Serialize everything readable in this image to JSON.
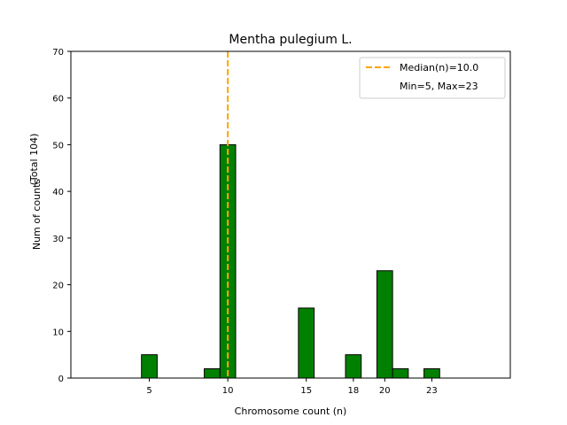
{
  "chart_data": {
    "type": "bar",
    "title": "Mentha pulegium L.",
    "xlabel": "Chromosome count (n)",
    "ylabel_line1": "Num of counts",
    "ylabel_line2": "(Total 104)",
    "xlim": [
      0,
      28
    ],
    "ylim": [
      0,
      70
    ],
    "x_ticks": [
      5,
      10,
      15,
      18,
      20,
      23
    ],
    "y_ticks": [
      0,
      10,
      20,
      30,
      40,
      50,
      60,
      70
    ],
    "bars": [
      {
        "x": 5,
        "value": 5
      },
      {
        "x": 9,
        "value": 2
      },
      {
        "x": 10,
        "value": 50
      },
      {
        "x": 15,
        "value": 15
      },
      {
        "x": 18,
        "value": 5
      },
      {
        "x": 20,
        "value": 23
      },
      {
        "x": 21,
        "value": 2
      },
      {
        "x": 23,
        "value": 2
      }
    ],
    "bar_color": "#008000",
    "median": 10.0,
    "median_color": "#FFA500",
    "legend": {
      "position": "top-right",
      "median_label": "Median(n)=10.0",
      "range_label": "Min=5, Max=23"
    },
    "grid": false
  }
}
